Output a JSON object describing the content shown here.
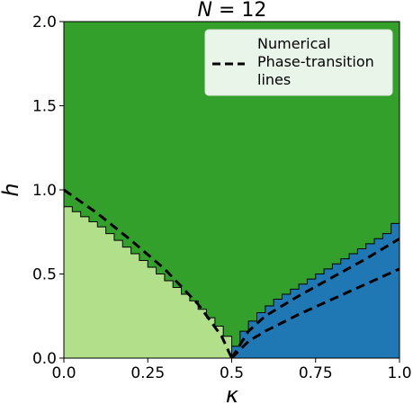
{
  "chart_data": {
    "type": "heatmap",
    "title": "N = 12",
    "title_symbol": "N",
    "title_rest": " = 12",
    "xlabel": "κ",
    "ylabel": "h",
    "xlim": [
      0.0,
      1.0
    ],
    "ylim": [
      0.0,
      2.0
    ],
    "xticks": [
      "0.0",
      "0.25",
      "0.5",
      "0.75",
      "1.0"
    ],
    "xtick_values": [
      0.0,
      0.25,
      0.5,
      0.75,
      1.0
    ],
    "yticks": [
      "0.0",
      "0.5",
      "1.0",
      "1.5",
      "2.0"
    ],
    "ytick_values": [
      0.0,
      0.5,
      1.0,
      1.5,
      2.0
    ],
    "grid": false,
    "legend": {
      "placement": "top-right",
      "entries": [
        {
          "label": "Numerical",
          "style": "patch-light"
        },
        {
          "label": "Phase-transition",
          "style": "dashed-line"
        },
        {
          "label": "lines",
          "style": "none"
        }
      ]
    },
    "colors": {
      "region_top": "#33a02c",
      "region_left": "#b2df8a",
      "region_right": "#1f78b4",
      "legend_bg": "#eaf5ea",
      "transition_line": "#000000",
      "boundary": "#000000"
    },
    "regions": [
      {
        "name": "upper",
        "color_key": "region_top"
      },
      {
        "name": "left",
        "color_key": "region_left"
      },
      {
        "name": "right",
        "color_key": "region_right"
      }
    ],
    "left_boundary_step": 0.025,
    "left_boundary": [
      [
        0.0,
        0.9
      ],
      [
        0.025,
        0.87
      ],
      [
        0.05,
        0.84
      ],
      [
        0.075,
        0.81
      ],
      [
        0.1,
        0.78
      ],
      [
        0.125,
        0.74
      ],
      [
        0.15,
        0.7
      ],
      [
        0.175,
        0.66
      ],
      [
        0.2,
        0.62
      ],
      [
        0.225,
        0.58
      ],
      [
        0.25,
        0.54
      ],
      [
        0.275,
        0.5
      ],
      [
        0.3,
        0.46
      ],
      [
        0.325,
        0.42
      ],
      [
        0.35,
        0.38
      ],
      [
        0.375,
        0.34
      ],
      [
        0.4,
        0.29
      ],
      [
        0.425,
        0.24
      ],
      [
        0.45,
        0.19
      ],
      [
        0.475,
        0.13
      ],
      [
        0.5,
        0.0
      ]
    ],
    "right_boundary_step": 0.025,
    "right_boundary": [
      [
        0.5,
        0.07
      ],
      [
        0.525,
        0.16
      ],
      [
        0.55,
        0.22
      ],
      [
        0.575,
        0.27
      ],
      [
        0.6,
        0.31
      ],
      [
        0.625,
        0.35
      ],
      [
        0.65,
        0.38
      ],
      [
        0.675,
        0.41
      ],
      [
        0.7,
        0.44
      ],
      [
        0.725,
        0.47
      ],
      [
        0.75,
        0.5
      ],
      [
        0.775,
        0.53
      ],
      [
        0.8,
        0.56
      ],
      [
        0.825,
        0.59
      ],
      [
        0.85,
        0.62
      ],
      [
        0.875,
        0.65
      ],
      [
        0.9,
        0.68
      ],
      [
        0.925,
        0.71
      ],
      [
        0.95,
        0.74
      ],
      [
        0.975,
        0.8
      ]
    ],
    "transition_lines": [
      {
        "name": "left-line",
        "points": [
          [
            0.0,
            1.0
          ],
          [
            0.1,
            0.86
          ],
          [
            0.2,
            0.7
          ],
          [
            0.3,
            0.53
          ],
          [
            0.4,
            0.32
          ],
          [
            0.47,
            0.13
          ],
          [
            0.5,
            0.0
          ]
        ]
      },
      {
        "name": "right-upper-line",
        "points": [
          [
            0.5,
            0.0
          ],
          [
            0.55,
            0.16
          ],
          [
            0.6,
            0.25
          ],
          [
            0.7,
            0.37
          ],
          [
            0.8,
            0.48
          ],
          [
            0.9,
            0.59
          ],
          [
            1.0,
            0.71
          ]
        ]
      },
      {
        "name": "right-lower-line",
        "points": [
          [
            0.5,
            0.0
          ],
          [
            0.55,
            0.1
          ],
          [
            0.6,
            0.16
          ],
          [
            0.7,
            0.26
          ],
          [
            0.8,
            0.35
          ],
          [
            0.9,
            0.44
          ],
          [
            1.0,
            0.53
          ]
        ]
      }
    ]
  }
}
